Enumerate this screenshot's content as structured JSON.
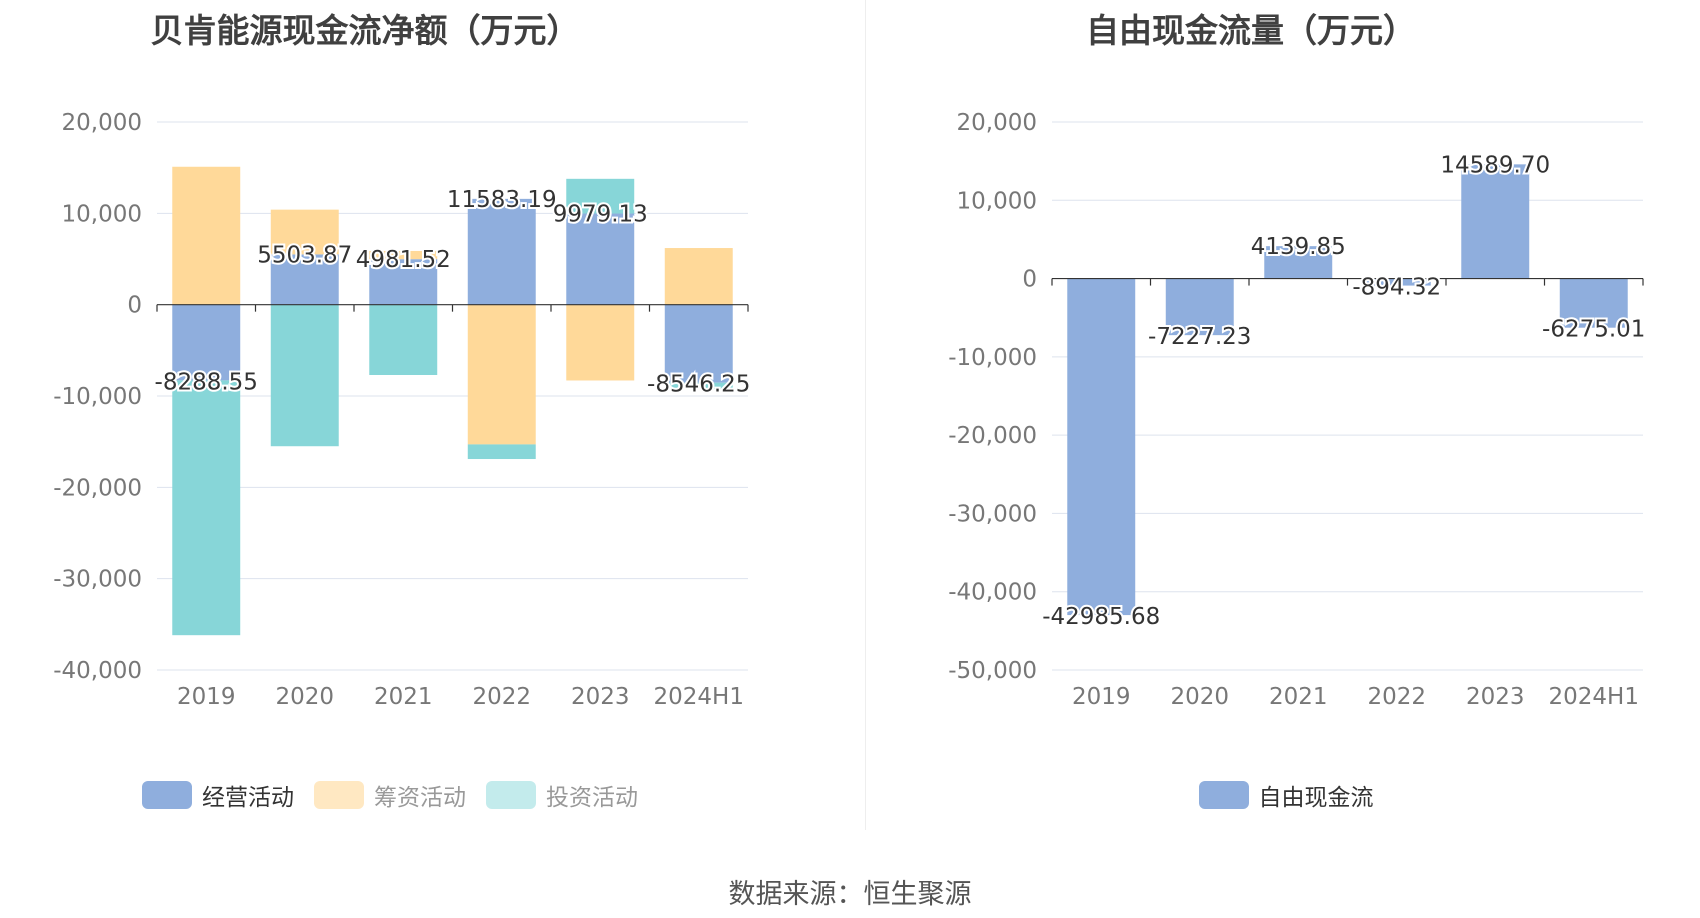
{
  "source": "数据来源：恒生聚源",
  "colors": {
    "operating": "#8FAEDD",
    "financing": "#FFD999",
    "investing": "#87D6D8",
    "grid": "#DDE3EE",
    "axis": "#333333",
    "tick": "#777777"
  },
  "chart_data": [
    {
      "type": "bar",
      "stacked": true,
      "title": "贝肯能源现金流净额（万元）",
      "categories": [
        "2019",
        "2020",
        "2021",
        "2022",
        "2023",
        "2024H1"
      ],
      "series": [
        {
          "name": "经营活动",
          "key": "operating",
          "values": [
            -8288.55,
            5503.87,
            4981.52,
            11583.19,
            9979.13,
            -8546.25
          ]
        },
        {
          "name": "筹资活动",
          "key": "financing",
          "values": [
            15100,
            4900,
            900,
            -15300,
            -8300,
            6200
          ]
        },
        {
          "name": "投资活动",
          "key": "investing",
          "values": [
            -27900,
            -15500,
            -7700,
            -1600,
            3800,
            -700
          ]
        }
      ],
      "data_labels": [
        "-8288.55",
        "5503.87",
        "4981.52",
        "11583.19",
        "9979.13",
        "-8546.25"
      ],
      "yticks": [
        20000,
        10000,
        0,
        -10000,
        -20000,
        -30000,
        -40000
      ],
      "ytick_labels": [
        "20,000",
        "10,000",
        "0",
        "-10,000",
        "-20,000",
        "-30,000",
        "-40,000"
      ],
      "ylim": [
        -40000,
        20000
      ],
      "grid": true,
      "legend_position": "bottom",
      "legend_faded": [
        false,
        true,
        true
      ]
    },
    {
      "type": "bar",
      "title": "自由现金流量（万元）",
      "categories": [
        "2019",
        "2020",
        "2021",
        "2022",
        "2023",
        "2024H1"
      ],
      "series": [
        {
          "name": "自由现金流",
          "key": "operating",
          "values": [
            -42985.68,
            -7227.23,
            4139.85,
            -894.32,
            14589.7,
            -6275.01
          ]
        }
      ],
      "data_labels": [
        "-42985.68",
        "-7227.23",
        "4139.85",
        "-894.32",
        "14589.70",
        "-6275.01"
      ],
      "yticks": [
        20000,
        10000,
        0,
        -10000,
        -20000,
        -30000,
        -40000,
        -50000
      ],
      "ytick_labels": [
        "20,000",
        "10,000",
        "0",
        "-10,000",
        "-20,000",
        "-30,000",
        "-40,000",
        "-50,000"
      ],
      "ylim": [
        -50000,
        20000
      ],
      "grid": true,
      "legend_position": "bottom",
      "legend_faded": [
        false
      ]
    }
  ]
}
